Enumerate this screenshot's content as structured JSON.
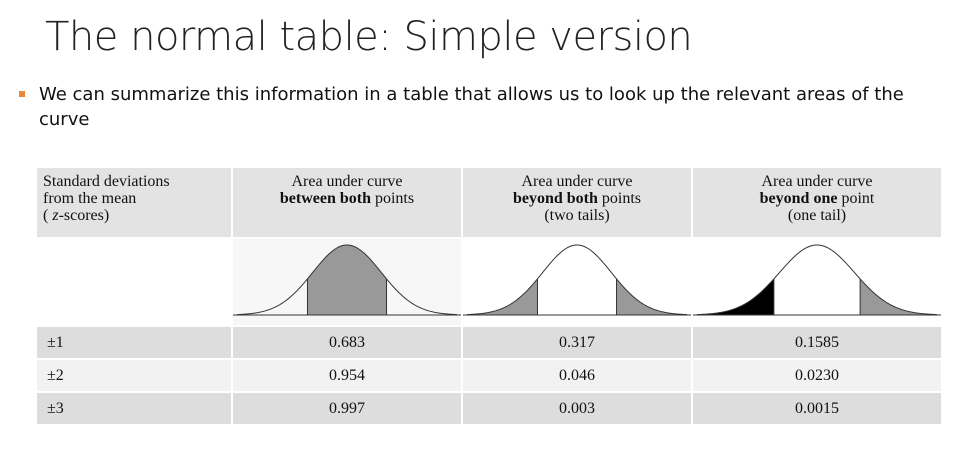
{
  "slide": {
    "title": "The normal table: Simple version",
    "bullet": "We can summarize this information in a table that allows us to look up the relevant areas of the curve"
  },
  "table": {
    "header": {
      "col0": {
        "line1": "Standard deviations",
        "line2": "from the mean",
        "line3_pre": "( ",
        "line3_z": "z",
        "line3_post": "-scores)"
      },
      "col1": {
        "line1": "Area under curve",
        "line2_bold": "between both",
        "line2_rest": " points"
      },
      "col2": {
        "line1": "Area under curve",
        "line2_bold": "beyond both",
        "line2_rest": " points",
        "line3": "(two tails)"
      },
      "col3": {
        "line1": "Area under curve",
        "line2_bold": "beyond one",
        "line2_rest": " point",
        "line3": "(one tail)"
      }
    },
    "curves": [
      {
        "name": "between-both",
        "shade": "middle",
        "colors": {
          "fill": "#999999",
          "tail": "#000000"
        }
      },
      {
        "name": "two-tails",
        "shade": "tails"
      },
      {
        "name": "one-tail",
        "shade": "left-tail-black-right-gray"
      }
    ],
    "rows": [
      {
        "z": "±1",
        "between": "0.683",
        "two_tails": "0.317",
        "one_tail": "0.1585"
      },
      {
        "z": "±2",
        "between": "0.954",
        "two_tails": "0.046",
        "one_tail": "0.0230"
      },
      {
        "z": "±3",
        "between": "0.997",
        "two_tails": "0.003",
        "one_tail": "0.0015"
      }
    ]
  },
  "colors": {
    "bullet_accent": "#e8873a",
    "header_bg": "#e3e3e3",
    "row_shade": "#dddddd",
    "row_plain": "#f2f2f2",
    "curve_shade": "#999999"
  }
}
